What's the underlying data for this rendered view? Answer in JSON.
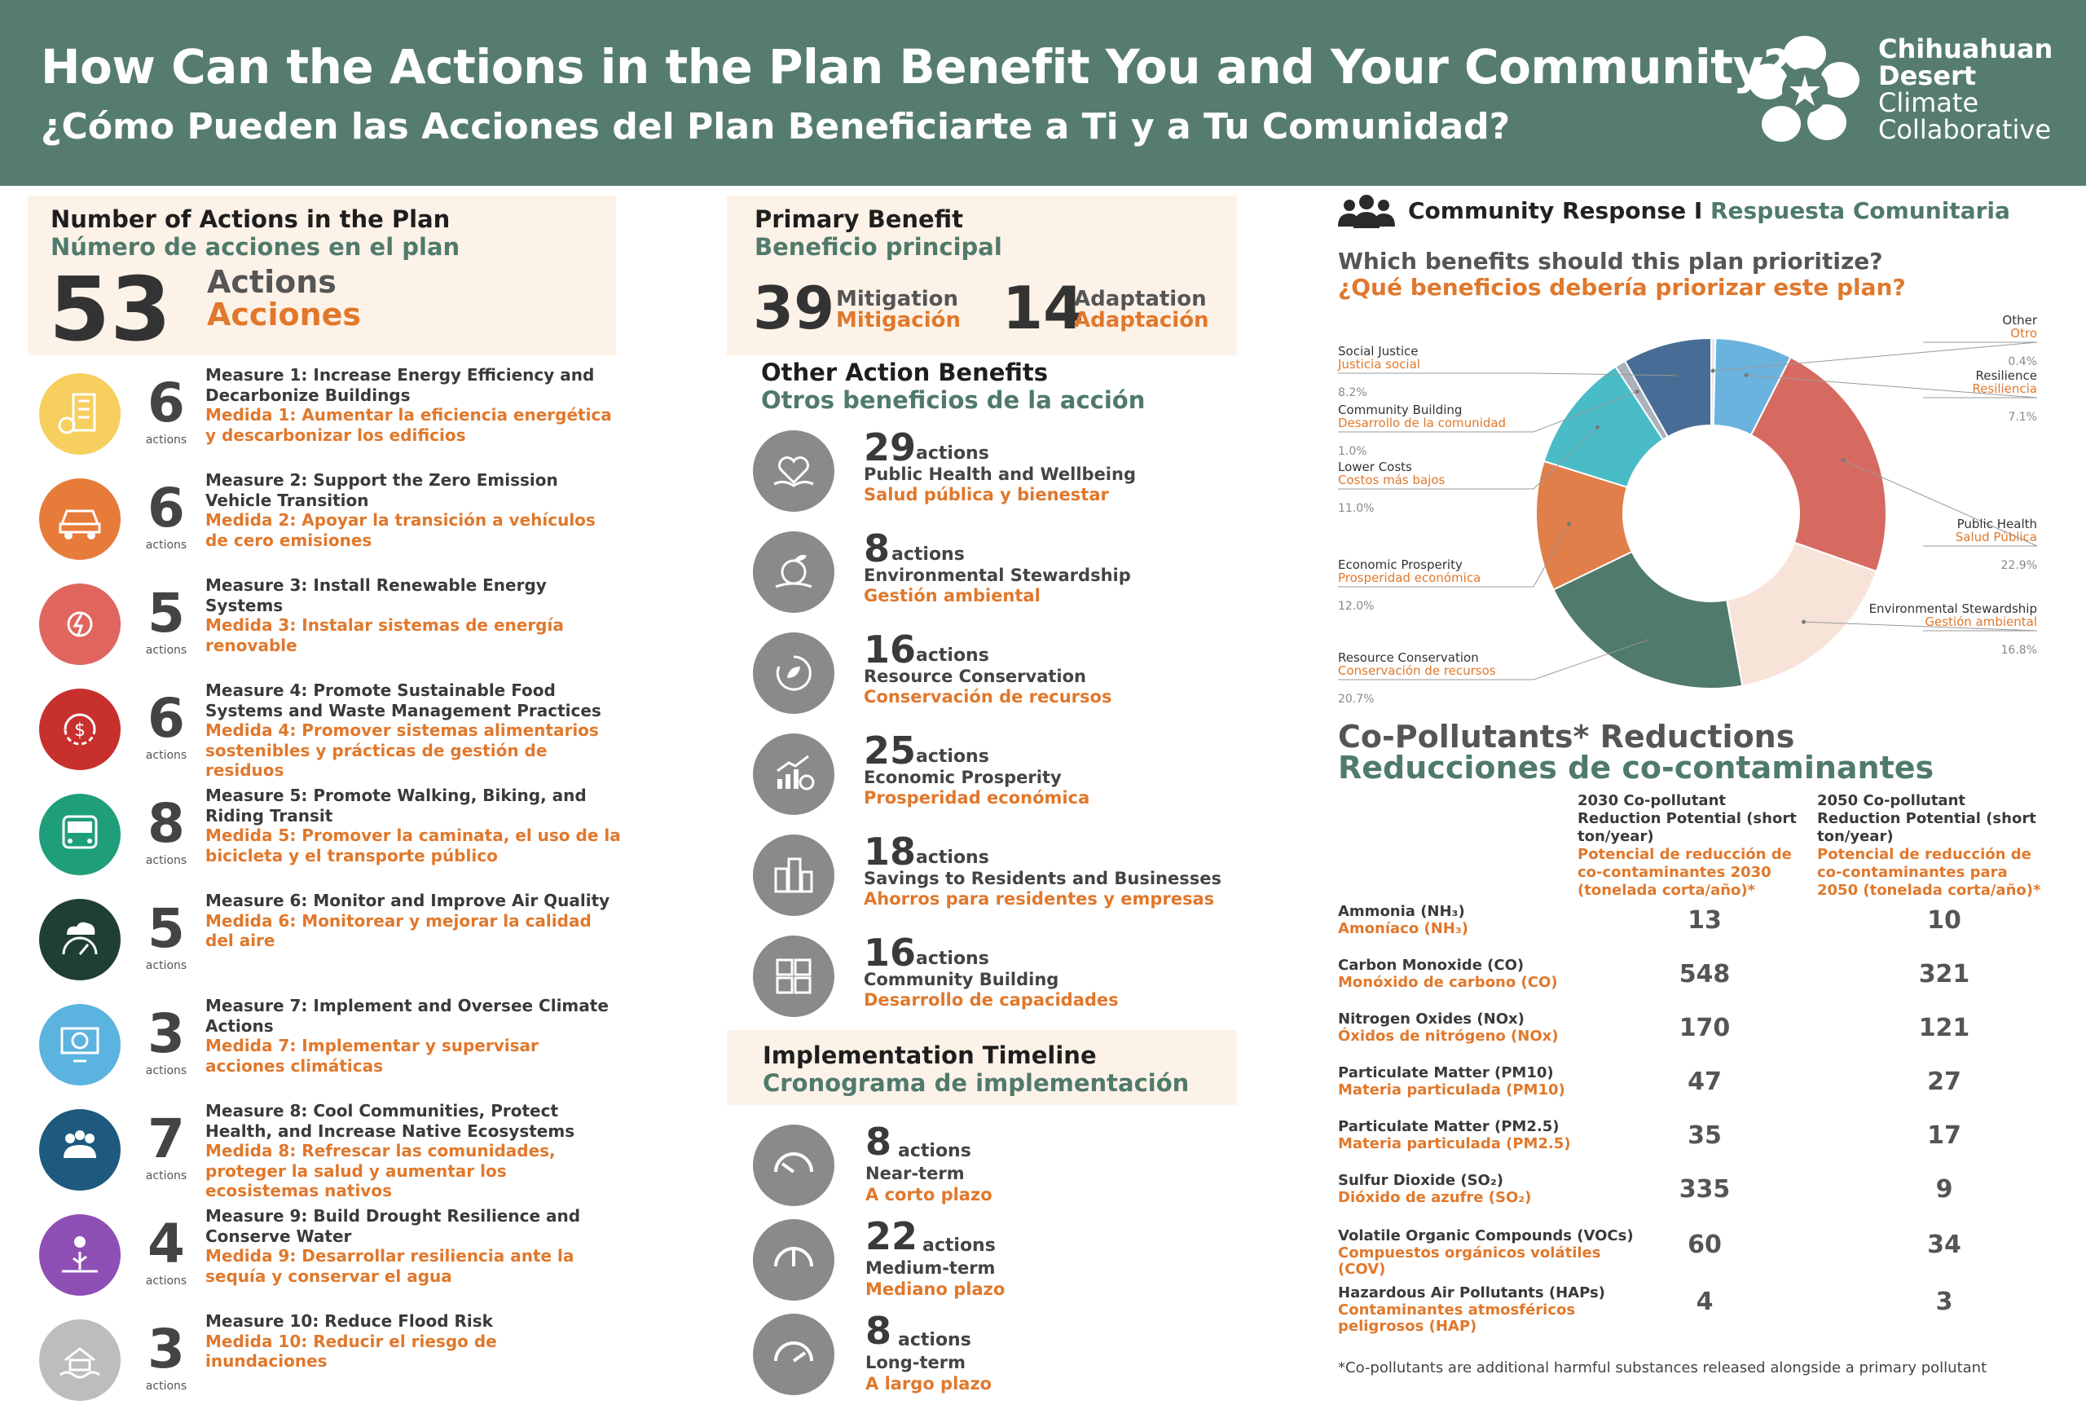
{
  "header": {
    "title_en": "How Can the Actions in the Plan Benefit You and Your Community?",
    "title_es": "¿Cómo Pueden las Acciones del Plan Beneficiarte a Ti y a Tu Comunidad?",
    "logo_lines": [
      "Chihuahuan",
      "Desert",
      "Climate",
      "Collaborative"
    ],
    "bg_color": "#567c70"
  },
  "actions_box": {
    "title_en": "Number of Actions in the Plan",
    "title_es": "Número de acciones en el plan",
    "count": "53",
    "label_en": "Actions",
    "label_es": "Acciones"
  },
  "measures": [
    {
      "count": "6",
      "unit": "actions",
      "en": "Measure 1: Increase Energy Efficiency and Decarbonize Buildings",
      "es": "Medida 1: Aumentar la eficiencia energética y descarbonizar los edificios",
      "color": "#f6cf5e",
      "icon": "building-energy-icon"
    },
    {
      "count": "6",
      "unit": "actions",
      "en": "Measure 2: Support the Zero Emission Vehicle Transition",
      "es": "Medida 2: Apoyar la transición a vehículos de cero emisiones",
      "color": "#e77b3a",
      "icon": "electric-vehicle-icon"
    },
    {
      "count": "5",
      "unit": "actions",
      "en": "Measure 3: Install Renewable Energy Systems",
      "es": "Medida 3: Instalar sistemas de energía renovable",
      "color": "#e0655e",
      "icon": "renewable-energy-icon"
    },
    {
      "count": "6",
      "unit": "actions",
      "en": "Measure 4: Promote Sustainable Food Systems and Waste Management Practices",
      "es": "Medida 4: Promover sistemas alimentarios sostenibles y prácticas de gestión de residuos",
      "color": "#c8302e",
      "icon": "food-waste-icon"
    },
    {
      "count": "8",
      "unit": "actions",
      "en": "Measure 5: Promote Walking, Biking, and Riding Transit",
      "es": "Medida 5: Promover la caminata, el uso de la bicicleta y el transporte público",
      "color": "#1f9e7a",
      "icon": "transit-icon"
    },
    {
      "count": "5",
      "unit": "actions",
      "en": "Measure 6: Monitor and Improve Air Quality",
      "es": "Medida 6: Monitorear y mejorar la calidad del aire",
      "color": "#1f3f36",
      "icon": "air-quality-icon"
    },
    {
      "count": "3",
      "unit": "actions",
      "en": "Measure 7:  Implement and Oversee Climate Actions",
      "es": "Medida 7: Implementar y supervisar acciones climáticas",
      "color": "#5bb3e0",
      "icon": "monitor-globe-icon"
    },
    {
      "count": "7",
      "unit": "actions",
      "en": "Measure 8: Cool Communities, Protect Health, and Increase Native Ecosystems",
      "es": "Medida 8: Refrescar las comunidades, proteger la salud y aumentar los ecosistemas nativos",
      "color": "#1d5a7e",
      "icon": "community-health-icon"
    },
    {
      "count": "4",
      "unit": "actions",
      "en": "Measure 9: Build Drought Resilience and Conserve Water",
      "es": "Medida 9: Desarrollar resiliencia ante la sequía y conservar el agua",
      "color": "#8e4fb5",
      "icon": "drought-icon"
    },
    {
      "count": "3",
      "unit": "actions",
      "en": "Measure 10: Reduce Flood Risk",
      "es": "Medida 10: Reducir el riesgo de inundaciones",
      "color": "#bdbdbd",
      "icon": "flood-icon"
    }
  ],
  "primary_benefit": {
    "title_en": "Primary Benefit",
    "title_es": "Beneficio principal",
    "mitigation_count": "39",
    "mitigation_en": "Mitigation",
    "mitigation_es": "Mitigación",
    "adaptation_count": "14",
    "adaptation_en": "Adaptation",
    "adaptation_es": "Adaptación"
  },
  "other_benefits": {
    "title_en": "Other Action Benefits",
    "title_es": "Otros beneficios de la acción",
    "items": [
      {
        "count": "29",
        "unit": "actions",
        "en": "Public Health and Wellbeing",
        "es": "Salud pública y bienestar",
        "icon": "health-hands-icon"
      },
      {
        "count": "8",
        "unit": "actions",
        "en": "Environmental Stewardship",
        "es": "Gestión ambiental",
        "icon": "globe-plant-icon"
      },
      {
        "count": "16",
        "unit": "actions",
        "en": "Resource Conservation",
        "es": "Conservación de recursos",
        "icon": "recycle-leaf-icon"
      },
      {
        "count": "25",
        "unit": "actions",
        "en": "Economic Prosperity",
        "es": "Prosperidad económica",
        "icon": "growth-chart-icon"
      },
      {
        "count": "18",
        "unit": "actions",
        "en": "Savings to Residents and Businesses",
        "es": "Ahorros para residentes y empresas",
        "icon": "city-savings-icon"
      },
      {
        "count": "16",
        "unit": "actions",
        "en": "Community Building",
        "es": "Desarrollo de capacidades",
        "icon": "people-puzzle-icon"
      }
    ]
  },
  "timeline": {
    "title_en": "Implementation  Timeline",
    "title_es": "Cronograma de implementación",
    "items": [
      {
        "count": "8",
        "unit": "actions",
        "en": "Near-term",
        "es": "A corto plazo",
        "icon": "gauge-low-icon"
      },
      {
        "count": "22",
        "unit": "actions",
        "en": "Medium-term",
        "es": "Mediano plazo",
        "icon": "gauge-mid-icon"
      },
      {
        "count": "8",
        "unit": "actions",
        "en": "Long-term",
        "es": "A largo plazo",
        "icon": "gauge-high-icon"
      }
    ]
  },
  "community": {
    "title_en": "Community Response I ",
    "title_es": "Respuesta Comunitaria",
    "question_en": "Which benefits should this plan prioritize?",
    "question_es": "¿Qué beneficios debería priorizar este plan?"
  },
  "chart_data": {
    "type": "pie",
    "variant": "donut",
    "labels": [
      "Other",
      "Resilience",
      "Public Health",
      "Environmental Stewardship",
      "Resource Conservation",
      "Economic Prosperity",
      "Lower Costs",
      "Community Building",
      "Social Justice"
    ],
    "labels_es": [
      "Otro",
      "Resiliencia",
      "Salud Pública",
      "Gestión ambiental",
      "Conservación de recursos",
      "Prosperidad económica",
      "Costos más bajos",
      "Desarrollo de la comunidad",
      "Justicia social"
    ],
    "values": [
      0.4,
      7.1,
      22.9,
      16.8,
      20.7,
      12.0,
      11.0,
      1.0,
      8.2
    ],
    "value_labels": [
      "0.4%",
      "7.1%",
      "22.9%",
      "16.8%",
      "20.7%",
      "12.0%",
      "11.0%",
      "1.0%",
      "8.2%"
    ],
    "colors": [
      "#e8e8e8",
      "#6bb3df",
      "#d66a60",
      "#f8e3d8",
      "#4f7a6c",
      "#e07f4a",
      "#49bcc8",
      "#a9b1ba",
      "#476c96"
    ]
  },
  "copollutants": {
    "title_en": "Co-Pollutants* Reductions",
    "title_es": "Reducciones de co-contaminantes",
    "col1_en": "2030 Co-pollutant Reduction Potential (short ton/year)",
    "col1_es": "Potencial de reducción de co-contaminantes 2030 (tonelada corta/año)*",
    "col2_en": "2050 Co-pollutant Reduction Potential (short ton/year)",
    "col2_es": "Potencial de reducción de co-contaminantes para 2050 (tonelada corta/año)*",
    "rows": [
      {
        "en": "Ammonia (NH₃)",
        "es": "Amoníaco (NH₃)",
        "v2030": "13",
        "v2050": "10"
      },
      {
        "en": "Carbon Monoxide (CO)",
        "es": "Monóxido de carbono (CO)",
        "v2030": "548",
        "v2050": "321"
      },
      {
        "en": "Nitrogen Oxides (NOx)",
        "es": "Óxidos de nitrógeno (NOx)",
        "v2030": "170",
        "v2050": "121"
      },
      {
        "en": "Particulate Matter (PM10)",
        "es": "Materia particulada (PM10)",
        "v2030": "47",
        "v2050": "27"
      },
      {
        "en": "Particulate Matter (PM2.5)",
        "es": "Materia particulada (PM2.5)",
        "v2030": "35",
        "v2050": "17"
      },
      {
        "en": "Sulfur Dioxide (SO₂)",
        "es": "Dióxido de azufre (SO₂)",
        "v2030": "335",
        "v2050": "9"
      },
      {
        "en": "Volatile Organic Compounds (VOCs)",
        "es": "Compuestos orgánicos volátiles (COV)",
        "v2030": "60",
        "v2050": "34"
      },
      {
        "en": "Hazardous Air Pollutants (HAPs)",
        "es": "Contaminantes atmosféricos peligrosos (HAP)",
        "v2030": "4",
        "v2050": "3"
      }
    ],
    "footnote": "*Co-pollutants are additional harmful substances released alongside a primary pollutant"
  }
}
